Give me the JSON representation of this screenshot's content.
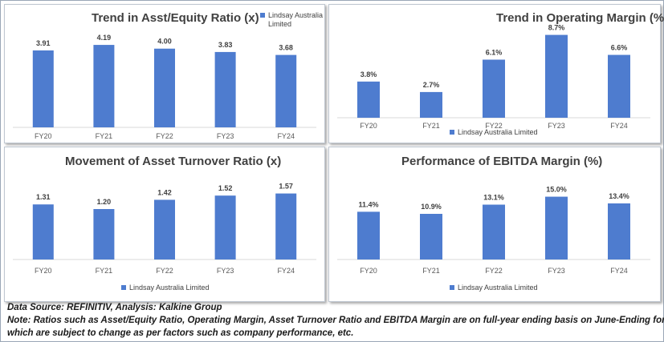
{
  "colors": {
    "bar": "#4e7ccf",
    "gridline": "#d9d9d9",
    "text": "#404040"
  },
  "chart_data": [
    {
      "type": "bar",
      "title": "Trend in Asst/Equity Ratio (x)",
      "categories": [
        "FY20",
        "FY21",
        "FY22",
        "FY23",
        "FY24"
      ],
      "series": [
        {
          "name": "Lindsay Australia Limited",
          "values": [
            3.91,
            4.19,
            4.0,
            3.83,
            3.68
          ]
        }
      ],
      "data_labels": [
        "3.91",
        "4.19",
        "4.00",
        "3.83",
        "3.68"
      ],
      "ylim": [
        0,
        4.6
      ],
      "legend": "top-right",
      "legend_lines": [
        "Lindsay Australia",
        "Limited"
      ]
    },
    {
      "type": "bar",
      "title": "Trend in Operating Margin (%)",
      "categories": [
        "FY20",
        "FY21",
        "FY22",
        "FY23",
        "FY24"
      ],
      "series": [
        {
          "name": "Lindsay Australia Limited",
          "values": [
            3.8,
            2.7,
            6.1,
            8.7,
            6.6
          ]
        }
      ],
      "data_labels": [
        "3.8%",
        "2.7%",
        "6.1%",
        "8.7%",
        "6.6%"
      ],
      "ylim": [
        0,
        9.0
      ],
      "legend": "bottom",
      "legend_lines": [
        "Lindsay Australia Limited"
      ]
    },
    {
      "type": "bar",
      "title": "Movement of Asset Turnover Ratio (x)",
      "categories": [
        "FY20",
        "FY21",
        "FY22",
        "FY23",
        "FY24"
      ],
      "series": [
        {
          "name": "Lindsay Australia Limited",
          "values": [
            1.31,
            1.2,
            1.42,
            1.52,
            1.57
          ]
        }
      ],
      "data_labels": [
        "1.31",
        "1.20",
        "1.42",
        "1.52",
        "1.57"
      ],
      "ylim": [
        0,
        1.6
      ],
      "legend": "bottom",
      "legend_lines": [
        "Lindsay Australia Limited"
      ]
    },
    {
      "type": "bar",
      "title": "Performance of EBITDA Margin (%)",
      "categories": [
        "FY20",
        "FY21",
        "FY22",
        "FY23",
        "FY24"
      ],
      "series": [
        {
          "name": "Lindsay Australia Limited",
          "values": [
            11.4,
            10.9,
            13.1,
            15.0,
            13.4
          ]
        }
      ],
      "data_labels": [
        "11.4%",
        "10.9%",
        "13.1%",
        "15.0%",
        "13.4%"
      ],
      "ylim": [
        0,
        15.3
      ],
      "legend": "bottom",
      "legend_lines": [
        "Lindsay Australia Limited"
      ]
    }
  ],
  "footer": {
    "source": "Data Source: REFINITIV, Analysis: Kalkine Group",
    "note_line1": "Note: Ratios such as Asset/Equity Ratio, Operating Margin, Asset Turnover Ratio and EBITDA Margin are on full-year ending basis on June-Ending for LAU,",
    "note_line2": "which are subject to change as per factors such as company performance, etc."
  }
}
